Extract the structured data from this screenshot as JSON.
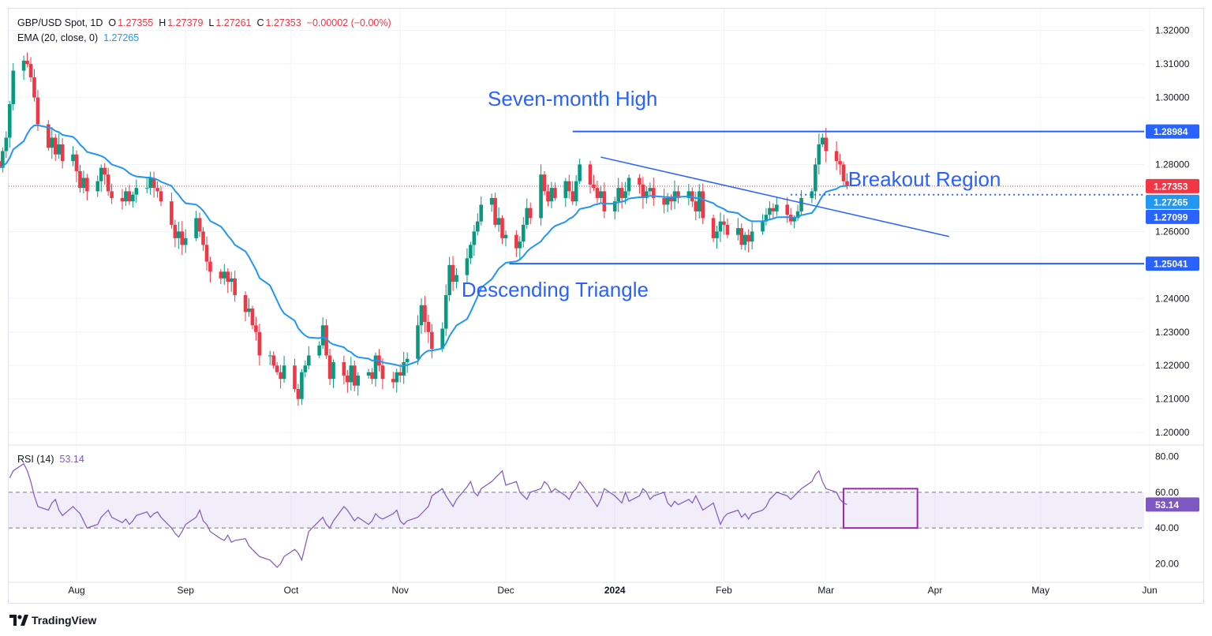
{
  "header": {
    "symbol": "GBP/USD Spot, 1D",
    "open_label": "O",
    "open": "1.27355",
    "high_label": "H",
    "high": "1.27379",
    "low_label": "L",
    "low": "1.27261",
    "close_label": "C",
    "close": "1.27353",
    "change": "−0.00002 (−0.00%)",
    "ema_label": "EMA (20, close, 0)",
    "ema_value": "1.27265",
    "rsi_label": "RSI (14)",
    "rsi_value": "53.14"
  },
  "branding": {
    "name": "TradingView"
  },
  "colors": {
    "up": "#089981",
    "down": "#f23645",
    "ema": "#2196f3",
    "rsi": "#7e57c2",
    "annotation": "#2962ff",
    "highlight_box": "#9c27b0"
  },
  "chart_data": {
    "type": "candlestick",
    "title": "GBP/USD Spot, 1D",
    "price_axis": {
      "ticks": [
        "1.32000",
        "1.31000",
        "1.30000",
        "1.28000",
        "1.26000",
        "1.24000",
        "1.23000",
        "1.22000",
        "1.21000",
        "1.20000"
      ],
      "range": [
        1.1965,
        1.3265
      ]
    },
    "time_axis": {
      "labels": [
        "Aug",
        "Sep",
        "Oct",
        "Nov",
        "Dec",
        "2024",
        "Feb",
        "Mar",
        "Apr",
        "May",
        "Jun"
      ]
    },
    "price_labels": [
      {
        "text": "1.28984",
        "value": 1.28984,
        "bg": "#2962ff",
        "fg": "#ffffff"
      },
      {
        "text": "1.27353",
        "value": 1.27353,
        "bg": "#f23645",
        "fg": "#ffffff"
      },
      {
        "text": "1.27265",
        "value": 1.27265,
        "bg": "#2196f3",
        "fg": "#ffffff"
      },
      {
        "text": "1.27099",
        "value": 1.27099,
        "bg": "#2962ff",
        "fg": "#ffffff"
      },
      {
        "text": "1.25041",
        "value": 1.25041,
        "bg": "#2962ff",
        "fg": "#ffffff"
      }
    ],
    "annotations": [
      {
        "text": "Seven-month High",
        "anchor_date": "2023-12-20",
        "price": 1.2975
      },
      {
        "text": "Breakout Region",
        "anchor_date": "2024-03-29",
        "price": 1.2735
      },
      {
        "text": "Descending Triangle",
        "anchor_date": "2023-12-15",
        "price": 1.2405
      }
    ],
    "horizontal_lines": [
      {
        "price": 1.28984,
        "from": "2023-12-20",
        "to": "2024-06-30",
        "style": "solid"
      },
      {
        "price": 1.25041,
        "from": "2023-12-02",
        "to": "2024-06-30",
        "style": "solid"
      },
      {
        "price": 1.27099,
        "from": "2024-02-20",
        "to": "2024-06-30",
        "style": "dotted"
      }
    ],
    "trend_lines": [
      {
        "from": [
          "2023-12-28",
          1.2822
        ],
        "to": [
          "2024-04-05",
          1.2585
        ]
      }
    ],
    "last_close_line": 1.27353,
    "closes": [
      1.279,
      1.284,
      1.288,
      1.298,
      1.308,
      1.311,
      1.31,
      1.306,
      1.3,
      1.292,
      1.285,
      1.288,
      1.283,
      1.286,
      1.281,
      1.283,
      1.278,
      1.273,
      1.276,
      1.272,
      1.275,
      1.279,
      1.277,
      1.272,
      1.27,
      1.269,
      1.272,
      1.269,
      1.271,
      1.273,
      1.273,
      1.276,
      1.273,
      1.272,
      1.269,
      1.262,
      1.258,
      1.26,
      1.256,
      1.258,
      1.264,
      1.26,
      1.256,
      1.251,
      1.248,
      1.246,
      1.248,
      1.245,
      1.246,
      1.241,
      1.236,
      1.237,
      1.232,
      1.23,
      1.223,
      1.223,
      1.22,
      1.218,
      1.216,
      1.22,
      1.213,
      1.21,
      1.218,
      1.22,
      1.223,
      1.226,
      1.232,
      1.223,
      1.216,
      1.221,
      1.217,
      1.215,
      1.22,
      1.214,
      1.217,
      1.218,
      1.216,
      1.223,
      1.22,
      1.216,
      1.215,
      1.218,
      1.217,
      1.221,
      1.222,
      1.232,
      1.238,
      1.233,
      1.23,
      1.225,
      1.231,
      1.241,
      1.25,
      1.245,
      1.247,
      1.252,
      1.256,
      1.26,
      1.263,
      1.268,
      1.27,
      1.262,
      1.264,
      1.258,
      1.259,
      1.255,
      1.257,
      1.262,
      1.267,
      1.264,
      1.277,
      1.272,
      1.269,
      1.273,
      1.27,
      1.275,
      1.272,
      1.269,
      1.275,
      1.28,
      1.274,
      1.273,
      1.27,
      1.272,
      1.266,
      1.269,
      1.273,
      1.27,
      1.272,
      1.276,
      1.274,
      1.27,
      1.272,
      1.273,
      1.27,
      1.268,
      1.27,
      1.269,
      1.272,
      1.27,
      1.272,
      1.269,
      1.266,
      1.272,
      1.264,
      1.258,
      1.26,
      1.263,
      1.262,
      1.259,
      1.261,
      1.256,
      1.259,
      1.257,
      1.26,
      1.263,
      1.265,
      1.267,
      1.266,
      1.268,
      1.265,
      1.263,
      1.264,
      1.266,
      1.27,
      1.272,
      1.28,
      1.286,
      1.288,
      1.284,
      1.281,
      1.28,
      1.275,
      1.2735
    ],
    "rsi": {
      "label": "RSI (14)",
      "current": 53.14,
      "levels": {
        "upper": 60.0,
        "lower": 40.0
      },
      "axis_ticks": [
        "80.00",
        "60.00",
        "40.00",
        "20.00"
      ],
      "range": [
        10,
        86
      ],
      "value_label": "53.14",
      "highlight_box": {
        "from": "2024-03-06",
        "to": "2024-03-27",
        "upper": 62,
        "lower": 40
      },
      "values": [
        68,
        72,
        76,
        72,
        66,
        58,
        52,
        50,
        54,
        56,
        50,
        47,
        52,
        50,
        48,
        44,
        40,
        42,
        46,
        48,
        50,
        46,
        43,
        45,
        42,
        44,
        47,
        49,
        46,
        48,
        49,
        46,
        40,
        37,
        35,
        38,
        42,
        46,
        50,
        44,
        42,
        38,
        34,
        33,
        36,
        32,
        33,
        34,
        30,
        28,
        26,
        24,
        22,
        20,
        18,
        20,
        24,
        28,
        26,
        22,
        30,
        38,
        44,
        46,
        42,
        40,
        44,
        52,
        50,
        47,
        44,
        46,
        42,
        44,
        48,
        46,
        45,
        48,
        50,
        44,
        42,
        44,
        46,
        48,
        50,
        52,
        58,
        62,
        58,
        55,
        52,
        56,
        63,
        66,
        60,
        58,
        62,
        66,
        68,
        70,
        72,
        64,
        66,
        60,
        58,
        56,
        60,
        62,
        66,
        64,
        60,
        62,
        58,
        56,
        60,
        62,
        66,
        58,
        55,
        52,
        56,
        62,
        58,
        56,
        54,
        60,
        55,
        58,
        62,
        60,
        56,
        58,
        60,
        54,
        52,
        55,
        53,
        56,
        54,
        58,
        54,
        50,
        54,
        48,
        42,
        46,
        48,
        50,
        46,
        48,
        45,
        48,
        50,
        52,
        56,
        58,
        60,
        58,
        56,
        58,
        60,
        62,
        66,
        70,
        72,
        66,
        62,
        60,
        56,
        54,
        53.14
      ]
    }
  }
}
